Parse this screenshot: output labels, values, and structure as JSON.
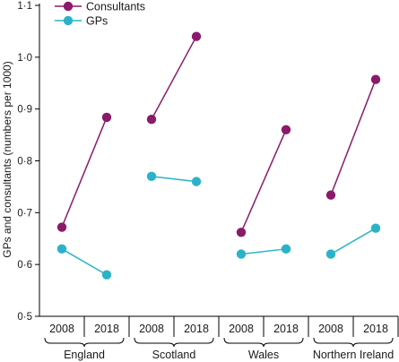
{
  "chart_data": {
    "type": "line",
    "ylabel": "GPs and consultants (numbers per 1000)",
    "ylim": [
      0.5,
      1.1
    ],
    "yticks": [
      "0·5",
      "0·6",
      "0·7",
      "0·8",
      "0·9",
      "1·0",
      "1·1"
    ],
    "ytick_values": [
      0.5,
      0.6,
      0.7,
      0.8,
      0.9,
      1.0,
      1.1
    ],
    "groups": [
      "England",
      "Scotland",
      "Wales",
      "Northern Ireland"
    ],
    "years": [
      "2008",
      "2018"
    ],
    "legend_position": "top-left",
    "grid": false,
    "series": [
      {
        "name": "Consultants",
        "color": "#8b1a6b",
        "values": [
          [
            0.672,
            0.884
          ],
          [
            0.88,
            1.04
          ],
          [
            0.662,
            0.86
          ],
          [
            0.734,
            0.957
          ]
        ]
      },
      {
        "name": "GPs",
        "color": "#2ab3c8",
        "values": [
          [
            0.63,
            0.58
          ],
          [
            0.77,
            0.76
          ],
          [
            0.62,
            0.63
          ],
          [
            0.62,
            0.67
          ]
        ]
      }
    ]
  }
}
